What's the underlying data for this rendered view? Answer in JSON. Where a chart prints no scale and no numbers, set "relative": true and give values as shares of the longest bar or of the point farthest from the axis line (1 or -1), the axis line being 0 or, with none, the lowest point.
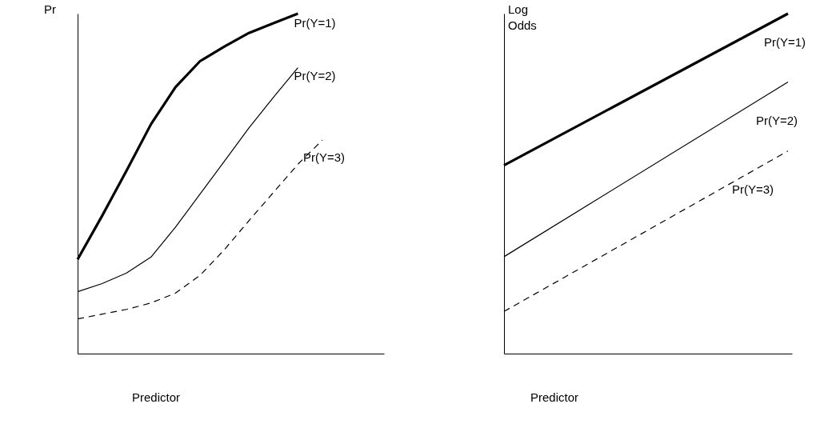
{
  "chart_data": [
    {
      "type": "line",
      "relative": true,
      "ylabel": "Pr",
      "xlabel": "Predictor",
      "tick_labels": false,
      "categories": [
        null,
        null,
        null,
        null,
        null,
        null,
        null,
        null,
        null,
        null,
        null
      ],
      "series": [
        {
          "name": "Pr(Y=1)",
          "color": "#000000",
          "line_style": "solid",
          "values": [
            0.277,
            0.405,
            0.538,
            0.675,
            0.784,
            0.86,
            0.903,
            0.943,
            0.972,
            1.0,
            null
          ]
        },
        {
          "name": "Pr(Y=2)",
          "color": "#000000",
          "line_style": "solid",
          "values": [
            0.182,
            0.206,
            0.237,
            0.284,
            0.372,
            0.469,
            0.566,
            0.664,
            0.754,
            0.841,
            null
          ]
        },
        {
          "name": "Pr(Y=3)",
          "color": "#000000",
          "line_style": "dashed",
          "values": [
            0.102,
            0.116,
            0.13,
            0.149,
            0.178,
            0.23,
            0.306,
            0.391,
            0.474,
            0.557,
            0.628
          ]
        }
      ]
    },
    {
      "type": "line",
      "relative": true,
      "ylabel": "Log Odds",
      "xlabel": "Predictor",
      "tick_labels": false,
      "categories": [
        null,
        null
      ],
      "series": [
        {
          "name": "Pr(Y=1)",
          "color": "#000000",
          "line_style": "solid",
          "values": [
            0.554,
            1.0
          ]
        },
        {
          "name": "Pr(Y=2)",
          "color": "#000000",
          "line_style": "solid",
          "values": [
            0.285,
            0.799
          ]
        },
        {
          "name": "Pr(Y=3)",
          "color": "#000000",
          "line_style": "dashed",
          "values": [
            0.124,
            0.596
          ]
        }
      ]
    }
  ]
}
